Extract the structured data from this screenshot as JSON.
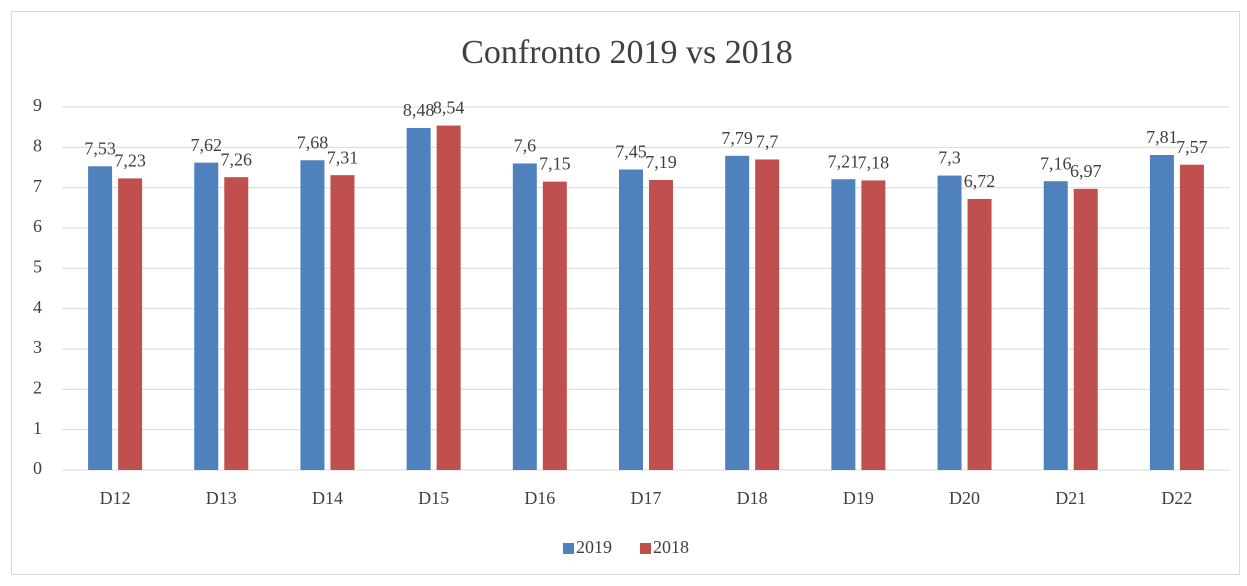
{
  "chart_data": {
    "type": "bar",
    "title": "Confronto 2019 vs 2018",
    "categories": [
      "D12",
      "D13",
      "D14",
      "D15",
      "D16",
      "D17",
      "D18",
      "D19",
      "D20",
      "D21",
      "D22"
    ],
    "series": [
      {
        "name": "2019",
        "color": "#4f81bd",
        "values": [
          7.53,
          7.62,
          7.68,
          8.48,
          7.6,
          7.45,
          7.79,
          7.21,
          7.3,
          7.16,
          7.81
        ],
        "value_labels": [
          "7,53",
          "7,62",
          "7,68",
          "8,48",
          "7,6",
          "7,45",
          "7,79",
          "7,21",
          "7,3",
          "7,16",
          "7,81"
        ]
      },
      {
        "name": "2018",
        "color": "#c0504d",
        "values": [
          7.23,
          7.26,
          7.31,
          8.54,
          7.15,
          7.19,
          7.7,
          7.18,
          6.72,
          6.97,
          7.57
        ],
        "value_labels": [
          "7,23",
          "7,26",
          "7,31",
          "8,54",
          "7,15",
          "7,19",
          "7,7",
          "7,18",
          "6,72",
          "6,97",
          "7,57"
        ]
      }
    ],
    "ylim": [
      0,
      9
    ],
    "yticks": [
      0,
      1,
      2,
      3,
      4,
      5,
      6,
      7,
      8,
      9
    ],
    "grid": true,
    "legend": "bottom"
  }
}
